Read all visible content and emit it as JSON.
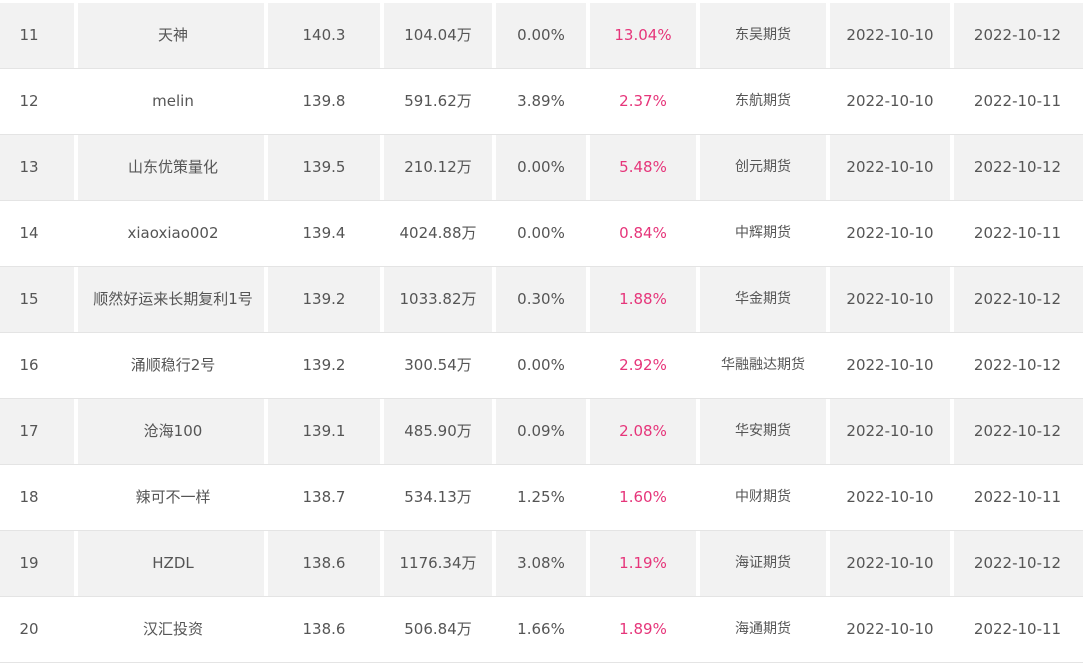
{
  "rows": [
    {
      "rank": "11",
      "name": "天神",
      "score": "140.3",
      "scale": "104.04万",
      "drawdown": "0.00%",
      "return": "13.04%",
      "broker": "东吴期货",
      "start": "2022-10-10",
      "end": "2022-10-12"
    },
    {
      "rank": "12",
      "name": "melin",
      "score": "139.8",
      "scale": "591.62万",
      "drawdown": "3.89%",
      "return": "2.37%",
      "broker": "东航期货",
      "start": "2022-10-10",
      "end": "2022-10-11"
    },
    {
      "rank": "13",
      "name": "山东优策量化",
      "score": "139.5",
      "scale": "210.12万",
      "drawdown": "0.00%",
      "return": "5.48%",
      "broker": "创元期货",
      "start": "2022-10-10",
      "end": "2022-10-12"
    },
    {
      "rank": "14",
      "name": "xiaoxiao002",
      "score": "139.4",
      "scale": "4024.88万",
      "drawdown": "0.00%",
      "return": "0.84%",
      "broker": "中辉期货",
      "start": "2022-10-10",
      "end": "2022-10-11"
    },
    {
      "rank": "15",
      "name": "顺然好运来长期复利1号",
      "score": "139.2",
      "scale": "1033.82万",
      "drawdown": "0.30%",
      "return": "1.88%",
      "broker": "华金期货",
      "start": "2022-10-10",
      "end": "2022-10-12"
    },
    {
      "rank": "16",
      "name": "涌顺稳行2号",
      "score": "139.2",
      "scale": "300.54万",
      "drawdown": "0.00%",
      "return": "2.92%",
      "broker": "华融融达期货",
      "start": "2022-10-10",
      "end": "2022-10-12"
    },
    {
      "rank": "17",
      "name": "沧海100",
      "score": "139.1",
      "scale": "485.90万",
      "drawdown": "0.09%",
      "return": "2.08%",
      "broker": "华安期货",
      "start": "2022-10-10",
      "end": "2022-10-12"
    },
    {
      "rank": "18",
      "name": "辣可不一样",
      "score": "138.7",
      "scale": "534.13万",
      "drawdown": "1.25%",
      "return": "1.60%",
      "broker": "中财期货",
      "start": "2022-10-10",
      "end": "2022-10-11"
    },
    {
      "rank": "19",
      "name": "HZDL",
      "score": "138.6",
      "scale": "1176.34万",
      "drawdown": "3.08%",
      "return": "1.19%",
      "broker": "海证期货",
      "start": "2022-10-10",
      "end": "2022-10-12"
    },
    {
      "rank": "20",
      "name": "汉汇投资",
      "score": "138.6",
      "scale": "506.84万",
      "drawdown": "1.66%",
      "return": "1.89%",
      "broker": "海通期货",
      "start": "2022-10-10",
      "end": "2022-10-11"
    }
  ],
  "colors": {
    "return_text": "#e6357a",
    "odd_row_bg": "#f2f2f2",
    "text": "#555555"
  }
}
